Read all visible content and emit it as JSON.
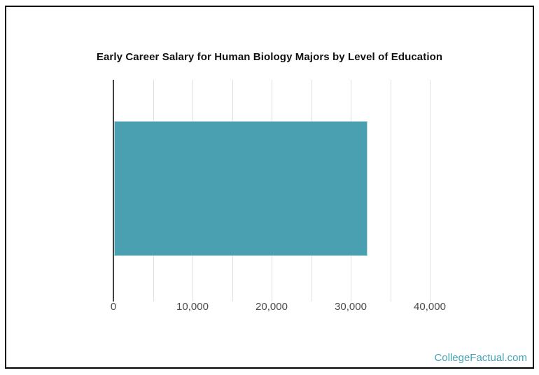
{
  "page": {
    "watermark": "CollegeFactual.com"
  },
  "colors": {
    "frame_border": "#000000",
    "title": "#111111",
    "bar": "#4A9FB1",
    "bar_border": "#B7D8DA",
    "gridline": "#E0E0E0",
    "axis_line": "#424242",
    "label": "#4A4A4A",
    "watermark": "#4AA3B5"
  },
  "chart_data": {
    "type": "bar",
    "orientation": "horizontal",
    "title": "Early Career Salary for Human Biology Majors by Level of Education",
    "categories": [
      ""
    ],
    "series": [
      {
        "name": "Early Career Salary",
        "values": [
          32000
        ]
      }
    ],
    "xlabel": "",
    "ylabel": "",
    "xlim": [
      0,
      40000
    ],
    "gridline_step": 5000,
    "grid": true,
    "legend": false,
    "ticks": [
      {
        "value": 0,
        "label": "0"
      },
      {
        "value": 10000,
        "label": "10,000"
      },
      {
        "value": 20000,
        "label": "20,000"
      },
      {
        "value": 30000,
        "label": "30,000"
      },
      {
        "value": 40000,
        "label": "40,000"
      }
    ]
  }
}
